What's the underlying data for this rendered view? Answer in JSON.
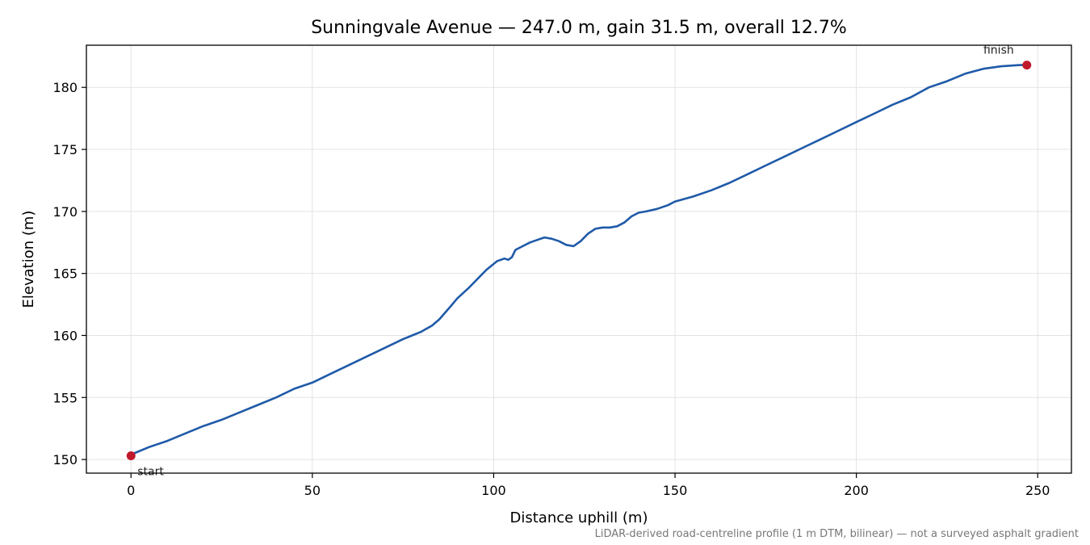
{
  "chart_data": {
    "type": "line",
    "title": "Sunningvale Avenue — 247.0 m, gain 31.5 m, overall 12.7%",
    "xlabel": "Distance uphill (m)",
    "ylabel": "Elevation (m)",
    "xlim": [
      -12.3,
      259.3
    ],
    "ylim": [
      148.9,
      183.4
    ],
    "xticks": [
      0,
      50,
      100,
      150,
      200,
      250
    ],
    "yticks": [
      150,
      155,
      160,
      165,
      170,
      175,
      180
    ],
    "grid": true,
    "footnote": "LiDAR-derived road-centreline profile (1 m DTM, bilinear) — not a surveyed asphalt gradient",
    "series": [
      {
        "color": "#1f5aa8",
        "x": [
          0,
          5,
          10,
          15,
          20,
          25,
          30,
          35,
          40,
          45,
          50,
          55,
          60,
          65,
          70,
          75,
          80,
          83,
          85,
          88,
          90,
          93,
          96,
          98,
          101,
          103,
          104,
          105,
          106,
          108,
          110,
          112,
          114,
          116,
          118,
          120,
          122,
          124,
          126,
          128,
          130,
          132,
          134,
          136,
          138,
          140,
          142,
          145,
          148,
          150,
          155,
          160,
          165,
          170,
          175,
          180,
          185,
          190,
          195,
          200,
          205,
          210,
          215,
          220,
          225,
          230,
          235,
          240,
          245,
          247
        ],
        "y": [
          150.4,
          151.0,
          151.5,
          152.1,
          152.7,
          153.2,
          153.8,
          154.4,
          155.0,
          155.7,
          156.2,
          156.9,
          157.6,
          158.3,
          159.0,
          159.7,
          160.3,
          160.8,
          161.3,
          162.3,
          163.0,
          163.8,
          164.7,
          165.3,
          166.0,
          166.2,
          166.1,
          166.3,
          166.9,
          167.2,
          167.5,
          167.7,
          167.9,
          167.8,
          167.6,
          167.3,
          167.2,
          167.6,
          168.2,
          168.6,
          168.7,
          168.7,
          168.8,
          169.1,
          169.6,
          169.9,
          170.0,
          170.2,
          170.5,
          170.8,
          171.2,
          171.7,
          172.3,
          173.0,
          173.7,
          174.4,
          175.1,
          175.8,
          176.5,
          177.2,
          177.9,
          178.6,
          179.2,
          180.0,
          180.5,
          181.1,
          181.5,
          181.7,
          181.8,
          181.8
        ]
      }
    ],
    "markers": [
      {
        "x": 0,
        "y": 150.3,
        "label": "start",
        "color": "#c0192b"
      },
      {
        "x": 247,
        "y": 181.8,
        "label": "finish",
        "color": "#c0192b"
      }
    ]
  }
}
